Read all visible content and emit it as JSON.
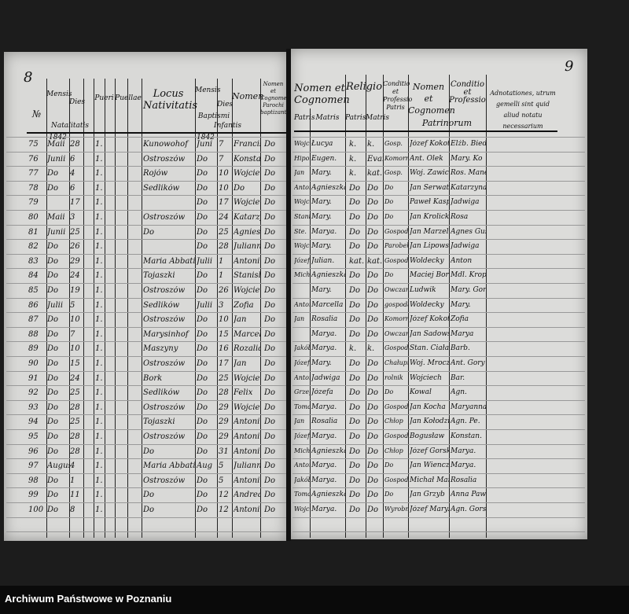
{
  "left_page": {
    "page_number": "8",
    "year": "1842",
    "headers": {
      "no": "№",
      "month": "Mensis",
      "day": "Dies",
      "natalitatis": "Natalitatis",
      "pueri": "Pueri",
      "puellae": "Puellae",
      "locus": "Locus Nativitatis",
      "baptism_month": "Mensis",
      "baptism_day": "Dies",
      "baptismi": "Baptismi",
      "nomen": "Nomen",
      "infantis": "Infantis",
      "parochus": "Nomen et Cognomen Parochi baptizantis"
    },
    "rows": [
      {
        "no": "75",
        "month": "Maii",
        "day": "28",
        "place": "Kunowohof",
        "bmonth": "Juni",
        "bday": "7",
        "name": "Franciscus"
      },
      {
        "no": "76",
        "month": "Junii",
        "day": "6",
        "place": "Ostroszów",
        "bmonth": "Do",
        "bday": "7",
        "name": "Konstanty"
      },
      {
        "no": "77",
        "month": "Do",
        "day": "4",
        "place": "Rojów",
        "bmonth": "Do",
        "bday": "10",
        "name": "Wojciech"
      },
      {
        "no": "78",
        "month": "Do",
        "day": "6",
        "place": "Sedlików",
        "bmonth": "Do",
        "bday": "10",
        "name": "Do"
      },
      {
        "no": "79",
        "month": "",
        "day": "17",
        "place": "",
        "bmonth": "Do",
        "bday": "17",
        "name": "Wojciech"
      },
      {
        "no": "80",
        "month": "Maii",
        "day": "3",
        "place": "Ostroszów",
        "bmonth": "Do",
        "bday": "24",
        "name": "Katarzyna"
      },
      {
        "no": "81",
        "month": "Junii",
        "day": "25",
        "place": "Do",
        "bmonth": "Do",
        "bday": "25",
        "name": "Agnieszka"
      },
      {
        "no": "82",
        "month": "Do",
        "day": "26",
        "place": "",
        "bmonth": "Do",
        "bday": "28",
        "name": "Julianna"
      },
      {
        "no": "83",
        "month": "Do",
        "day": "29",
        "place": "Maria Abbatis",
        "bmonth": "Julii",
        "bday": "1",
        "name": "Antonius"
      },
      {
        "no": "84",
        "month": "Do",
        "day": "24",
        "place": "Tojaszki",
        "bmonth": "Do",
        "bday": "1",
        "name": "Stanislaus"
      },
      {
        "no": "85",
        "month": "Do",
        "day": "19",
        "place": "Ostroszów",
        "bmonth": "Do",
        "bday": "26",
        "name": "Wojciech"
      },
      {
        "no": "86",
        "month": "Julii",
        "day": "5",
        "place": "Sedlików",
        "bmonth": "Julii",
        "bday": "3",
        "name": "Zofia"
      },
      {
        "no": "87",
        "month": "Do",
        "day": "10",
        "place": "Ostroszów",
        "bmonth": "Do",
        "bday": "10",
        "name": "Jan"
      },
      {
        "no": "88",
        "month": "Do",
        "day": "7",
        "place": "Marysinhof",
        "bmonth": "Do",
        "bday": "15",
        "name": "Marcella"
      },
      {
        "no": "89",
        "month": "Do",
        "day": "10",
        "place": "Maszyny",
        "bmonth": "Do",
        "bday": "16",
        "name": "Rozalia"
      },
      {
        "no": "90",
        "month": "Do",
        "day": "15",
        "place": "Ostroszów",
        "bmonth": "Do",
        "bday": "17",
        "name": "Jan"
      },
      {
        "no": "91",
        "month": "Do",
        "day": "24",
        "place": "Bork",
        "bmonth": "Do",
        "bday": "25",
        "name": "Wojciech"
      },
      {
        "no": "92",
        "month": "Do",
        "day": "25",
        "place": "Sedlików",
        "bmonth": "Do",
        "bday": "28",
        "name": "Felix"
      },
      {
        "no": "93",
        "month": "Do",
        "day": "28",
        "place": "Ostroszów",
        "bmonth": "Do",
        "bday": "29",
        "name": "Wojciech"
      },
      {
        "no": "94",
        "month": "Do",
        "day": "25",
        "place": "Tojaszki",
        "bmonth": "Do",
        "bday": "29",
        "name": "Antonius"
      },
      {
        "no": "95",
        "month": "Do",
        "day": "28",
        "place": "Ostroszów",
        "bmonth": "Do",
        "bday": "29",
        "name": "Antonius"
      },
      {
        "no": "96",
        "month": "Do",
        "day": "28",
        "place": "Do",
        "bmonth": "Do",
        "bday": "31",
        "name": "Antonius"
      },
      {
        "no": "97",
        "month": "Augusti",
        "day": "4",
        "place": "Maria Abbatis",
        "bmonth": "Aug",
        "bday": "5",
        "name": "Julianna"
      },
      {
        "no": "98",
        "month": "Do",
        "day": "1",
        "place": "Ostroszów",
        "bmonth": "Do",
        "bday": "5",
        "name": "Antonius"
      },
      {
        "no": "99",
        "month": "Do",
        "day": "11",
        "place": "Do",
        "bmonth": "Do",
        "bday": "12",
        "name": "Andreas"
      },
      {
        "no": "100",
        "month": "Do",
        "day": "8",
        "place": "Do",
        "bmonth": "Do",
        "bday": "12",
        "name": "Antonius"
      }
    ]
  },
  "right_page": {
    "page_number": "9",
    "headers": {
      "nomen_cognomen": "Nomen et Cognomen",
      "patris": "Patris",
      "matris": "Matris",
      "religio": "Religio",
      "rel_patris": "Patris",
      "rel_matris": "Matris",
      "conditio": "Conditio et Professio Patris",
      "patrini_nomen": "Nomen et Cognomen",
      "patrini_conditio": "Conditio et Professio",
      "patrinorum": "Patrinorum",
      "adnotationes": "Adnotationes, utrum gemelli sint quid aliud notatu necessarium"
    },
    "rows": [
      {
        "father": "Wojciech",
        "mother": "Łucya",
        "rp": "k.",
        "rm": "k.",
        "cond": "Gosp.",
        "godparent": "Józef Kokot",
        "gcond": "Elżb. Bieder"
      },
      {
        "father": "Hipolit",
        "mother": "Eugen.",
        "rp": "k.",
        "rm": "Evang.",
        "cond": "Komornik",
        "godparent": "Ant. Olek",
        "gcond": "Mary. Ko"
      },
      {
        "father": "Jan",
        "mother": "Mary.",
        "rp": "k.",
        "rm": "kat.",
        "cond": "Gosp.",
        "godparent": "Woj. Zawicki",
        "gcond": "Ros. Manek"
      },
      {
        "father": "Antoni",
        "mother": "Agnieszka",
        "rp": "Do",
        "rm": "Do",
        "cond": "Do",
        "godparent": "Jan Serwatka",
        "gcond": "Katarzyna"
      },
      {
        "father": "Wojciech",
        "mother": "Mary.",
        "rp": "Do",
        "rm": "Do",
        "cond": "Do",
        "godparent": "Paweł Kasper",
        "gcond": "Jadwiga"
      },
      {
        "father": "Stanisław",
        "mother": "Mary.",
        "rp": "Do",
        "rm": "Do",
        "cond": "Do",
        "godparent": "Jan Krolicki",
        "gcond": "Rosa"
      },
      {
        "father": "Ste.",
        "mother": "Marya.",
        "rp": "Do",
        "rm": "Do",
        "cond": "Gospodarz",
        "godparent": "Jan Marzelli",
        "gcond": "Agnes Guse"
      },
      {
        "father": "Wojciech",
        "mother": "Mary.",
        "rp": "Do",
        "rm": "Do",
        "cond": "Parobek",
        "godparent": "Jan Lipowski",
        "gcond": "Jadwiga"
      },
      {
        "father": "Józef",
        "mother": "Julian.",
        "rp": "kat.",
        "rm": "kat.",
        "cond": "Gospodarz",
        "godparent": "Woldecky",
        "gcond": "Anton"
      },
      {
        "father": "Michał",
        "mother": "Agnieszka",
        "rp": "Do",
        "rm": "Do",
        "cond": "Do",
        "godparent": "Maciej Bor",
        "gcond": "Mdl. Kropf"
      },
      {
        "father": "",
        "mother": "Mary.",
        "rp": "Do",
        "rm": "Do",
        "cond": "Owczarz",
        "godparent": "Ludwik",
        "gcond": "Mary. Gorska"
      },
      {
        "father": "Antoni",
        "mother": "Marcella",
        "rp": "Do",
        "rm": "Do",
        "cond": "gospodarz",
        "godparent": "Woldecky",
        "gcond": "Mary."
      },
      {
        "father": "Jan",
        "mother": "Rosalia",
        "rp": "Do",
        "rm": "Do",
        "cond": "Komornik",
        "godparent": "Józef Kokot",
        "gcond": "Zofia"
      },
      {
        "father": "",
        "mother": "Marya.",
        "rp": "Do",
        "rm": "Do",
        "cond": "Owczarz",
        "godparent": "Jan Sadowski",
        "gcond": "Marya"
      },
      {
        "father": "Jakób",
        "mother": "Marya.",
        "rp": "k.",
        "rm": "k.",
        "cond": "Gospodarz",
        "godparent": "Stan. Ciała",
        "gcond": "Barb."
      },
      {
        "father": "Józef",
        "mother": "Mary.",
        "rp": "Do",
        "rm": "Do",
        "cond": "Chałupnik",
        "godparent": "Woj. Mroczek",
        "gcond": "Ant. Gory"
      },
      {
        "father": "Antoni",
        "mother": "Jadwiga",
        "rp": "Do",
        "rm": "Do",
        "cond": "rolnik",
        "godparent": "Wojciech",
        "gcond": "Bar."
      },
      {
        "father": "Grzegorz",
        "mother": "Józefa",
        "rp": "Do",
        "rm": "Do",
        "cond": "Do",
        "godparent": "Kowal",
        "gcond": "Agn."
      },
      {
        "father": "Tomasz",
        "mother": "Marya.",
        "rp": "Do",
        "rm": "Do",
        "cond": "Gospodarz",
        "godparent": "Jan Kocha",
        "gcond": "Maryanna"
      },
      {
        "father": "Jan",
        "mother": "Rosalia",
        "rp": "Do",
        "rm": "Do",
        "cond": "Chłop",
        "godparent": "Jan Kołodziej",
        "gcond": "Agn. Pe."
      },
      {
        "father": "Józef",
        "mother": "Marya.",
        "rp": "Do",
        "rm": "Do",
        "cond": "Gospodarz",
        "godparent": "Bogusław",
        "gcond": "Konstan."
      },
      {
        "father": "Michał",
        "mother": "Agnieszka",
        "rp": "Do",
        "rm": "Do",
        "cond": "Chłop",
        "godparent": "Józef Gorski",
        "gcond": "Marya."
      },
      {
        "father": "Antoni",
        "mother": "Marya.",
        "rp": "Do",
        "rm": "Do",
        "cond": "Do",
        "godparent": "Jan Wiencz",
        "gcond": "Marya."
      },
      {
        "father": "Jakób",
        "mother": "Marya.",
        "rp": "Do",
        "rm": "Do",
        "cond": "Gospodarz",
        "godparent": "Michał Marzek",
        "gcond": "Rosalia"
      },
      {
        "father": "Tomasz",
        "mother": "Agnieszka",
        "rp": "Do",
        "rm": "Do",
        "cond": "Do",
        "godparent": "Jan Grzyb",
        "gcond": "Anna Pawlak"
      },
      {
        "father": "Wojciech",
        "mother": "Marya.",
        "rp": "Do",
        "rm": "Do",
        "cond": "Wyrobnik",
        "godparent": "Józef Mary.",
        "gcond": "Agn. Gorska"
      }
    ]
  },
  "footer": {
    "archive_label": "Archiwum Państwowe w Poznaniu"
  }
}
